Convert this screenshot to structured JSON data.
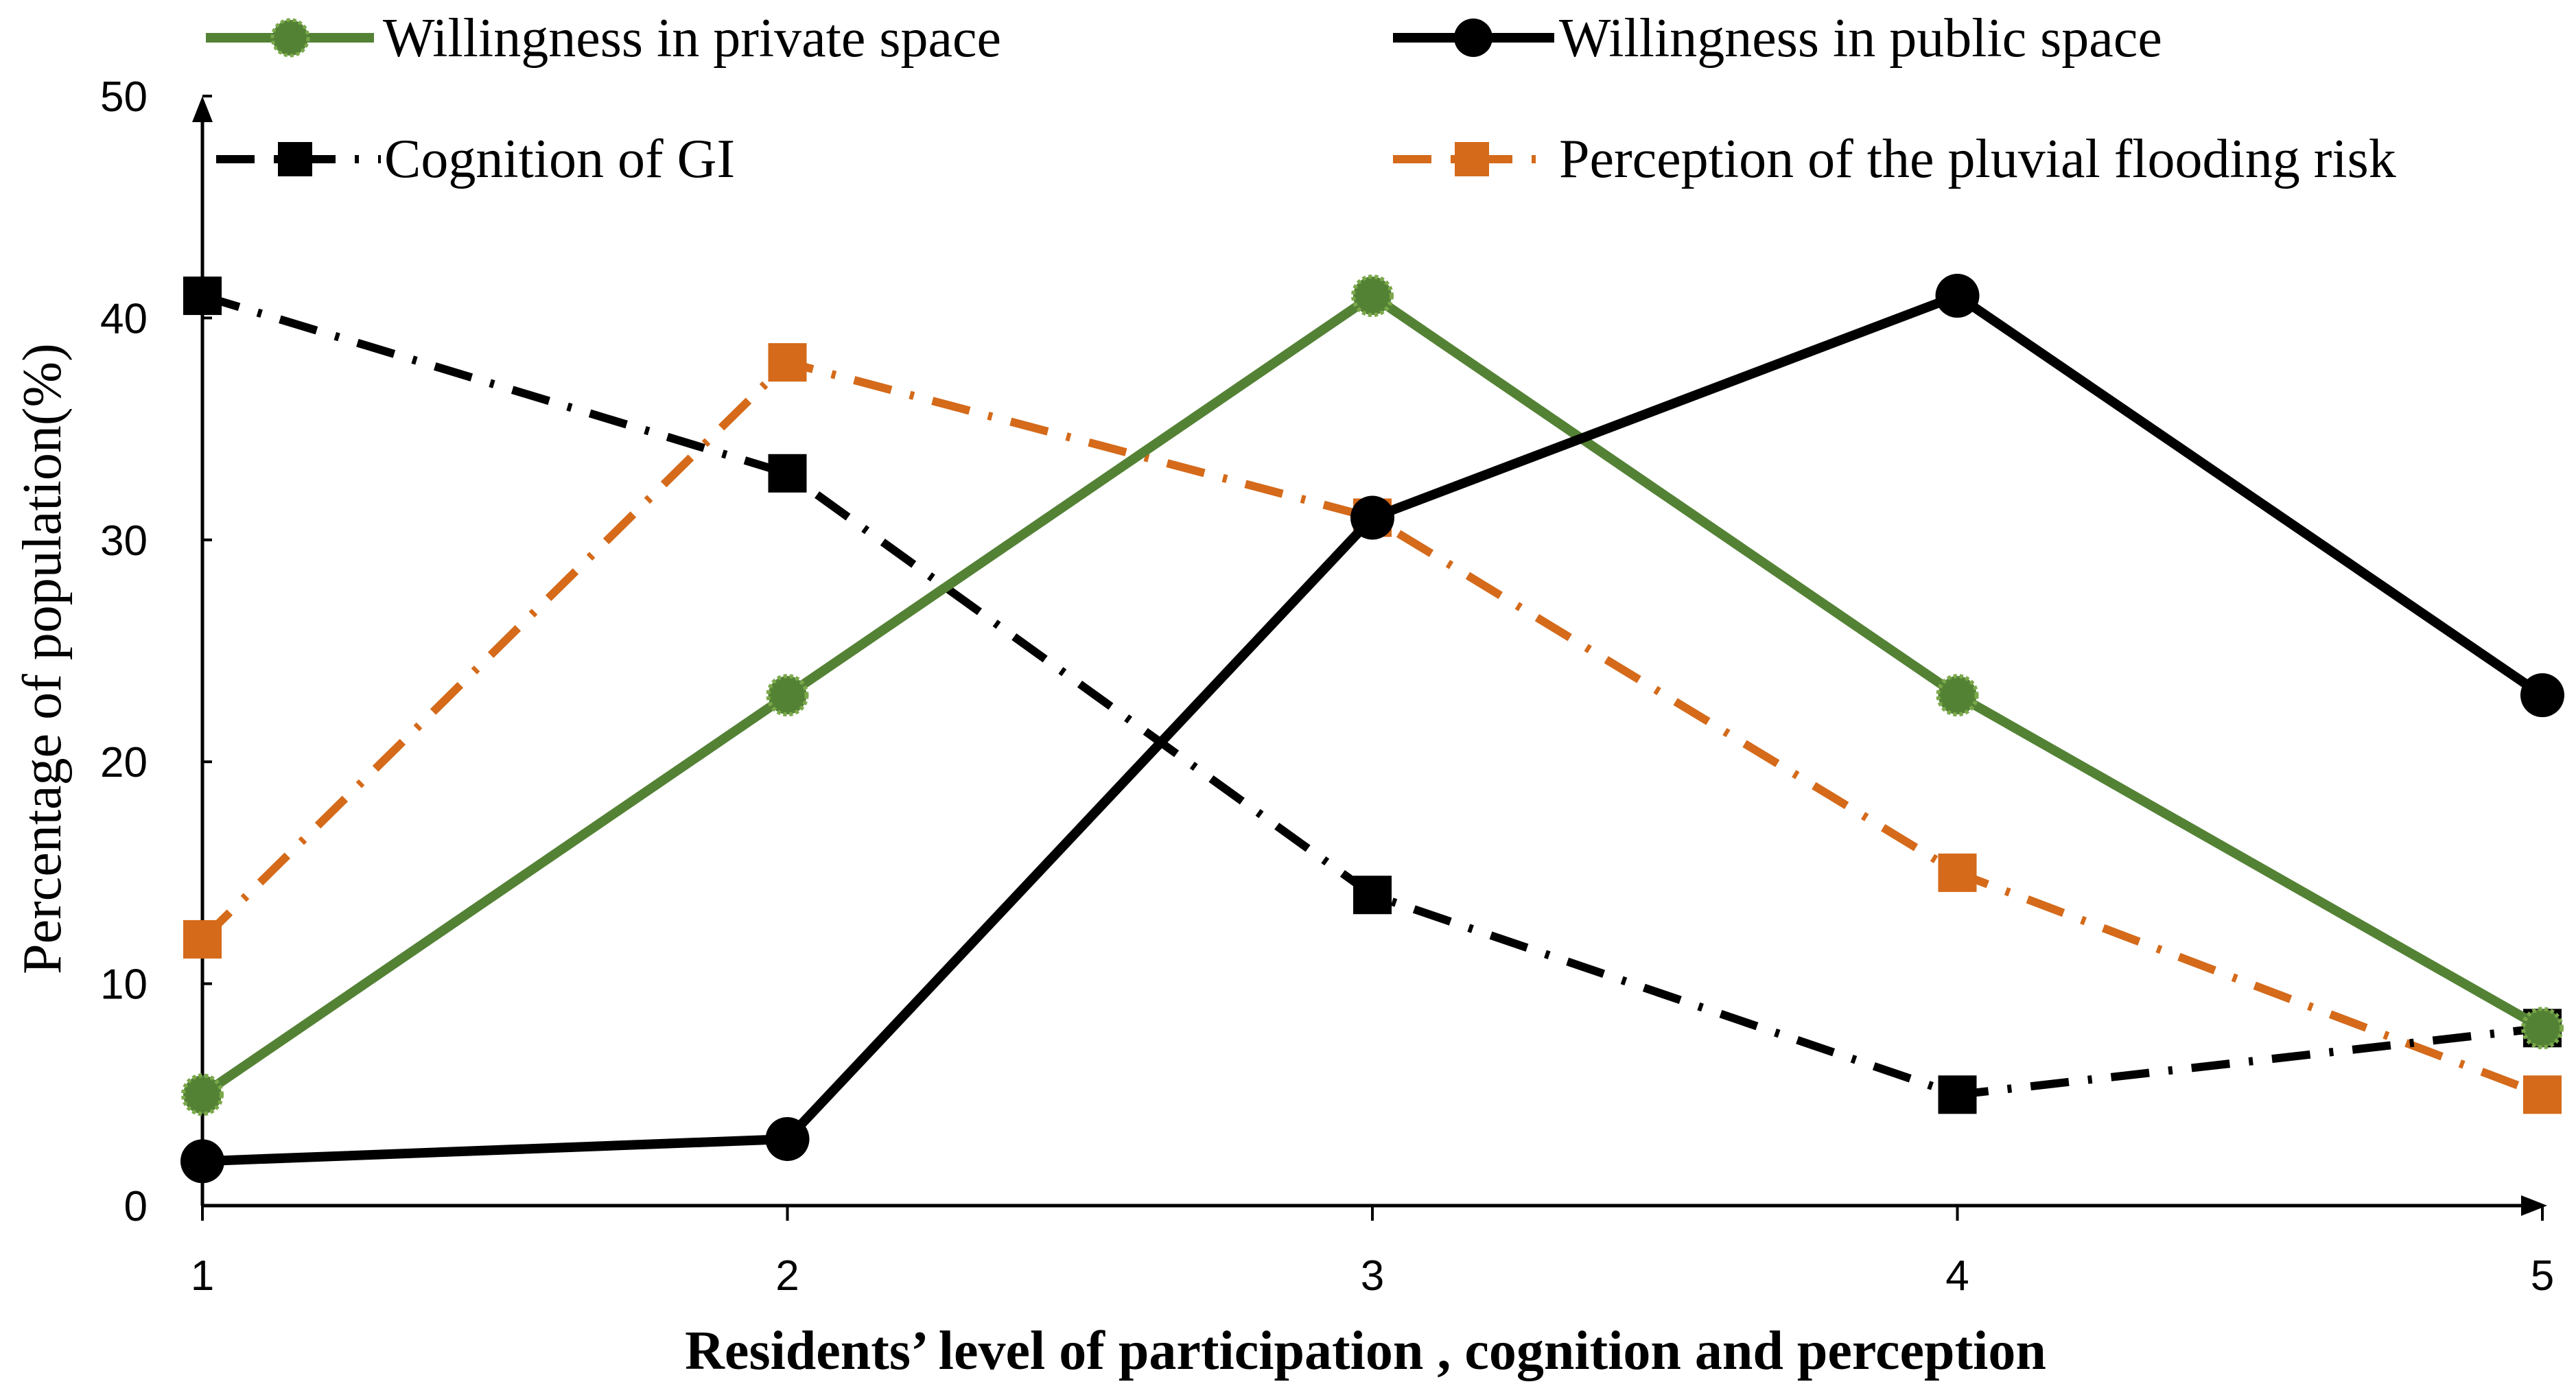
{
  "chart_data": {
    "type": "line",
    "title": "",
    "xlabel": "Residents’ level of participation , cognition and perception",
    "ylabel": "Percentage of population(%)",
    "x": [
      1,
      2,
      3,
      4,
      5
    ],
    "xlim": [
      1,
      5
    ],
    "ylim": [
      0,
      50
    ],
    "yticks": [
      0,
      10,
      20,
      30,
      40,
      50
    ],
    "grid": false,
    "legend_position": "top",
    "series": [
      {
        "name": "Willingness in private space",
        "values": [
          5,
          23,
          41,
          23,
          8
        ],
        "color": "#548235",
        "line_style": "solid",
        "marker": "circle-serrated"
      },
      {
        "name": "Willingness in public space",
        "values": [
          2,
          3,
          31,
          41,
          23
        ],
        "color": "#000000",
        "line_style": "solid",
        "marker": "circle"
      },
      {
        "name": "Cognition of GI",
        "values": [
          41,
          33,
          14,
          5,
          8
        ],
        "color": "#000000",
        "line_style": "dash-dot",
        "marker": "square"
      },
      {
        "name": "Perception of the pluvial flooding risk",
        "values": [
          12,
          38,
          31,
          15,
          5
        ],
        "color": "#d46a1a",
        "line_style": "dash-dot",
        "marker": "square"
      }
    ]
  }
}
